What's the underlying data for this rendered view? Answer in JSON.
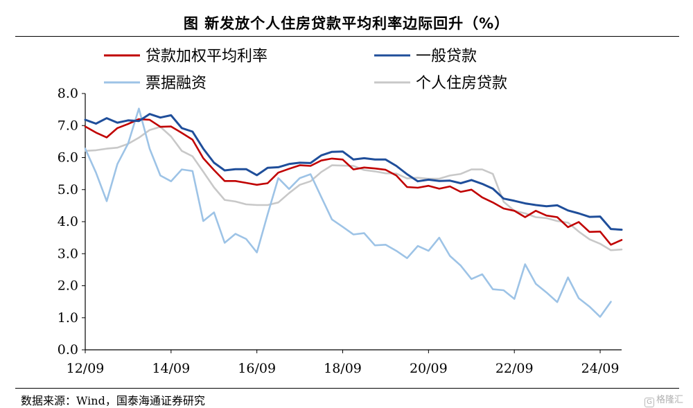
{
  "title": "图  新发放个人住房贷款平均利率边际回升（%）",
  "source": "数据来源：Wind，国泰海通证券研究",
  "watermark": "格隆汇",
  "chart_data": {
    "type": "line",
    "title": "图  新发放个人住房贷款平均利率边际回升（%）",
    "xlabel": "",
    "ylabel": "",
    "x_ticks": [
      "12/09",
      "14/09",
      "16/09",
      "18/09",
      "20/09",
      "22/09",
      "24/09"
    ],
    "x_range": [
      "2012-09",
      "2025-03"
    ],
    "ylim": [
      0,
      8
    ],
    "y_ticks": [
      "0.0",
      "1.0",
      "2.0",
      "3.0",
      "4.0",
      "5.0",
      "6.0",
      "7.0",
      "8.0"
    ],
    "grid": false,
    "legend_position": "top",
    "series": [
      {
        "name": "贷款加权平均利率",
        "color": "#c00000",
        "points": [
          [
            "2012-09",
            6.97
          ],
          [
            "2012-12",
            6.78
          ],
          [
            "2013-03",
            6.63
          ],
          [
            "2013-06",
            6.92
          ],
          [
            "2013-09",
            7.05
          ],
          [
            "2013-12",
            7.2
          ],
          [
            "2014-03",
            7.18
          ],
          [
            "2014-06",
            6.96
          ],
          [
            "2014-09",
            6.97
          ],
          [
            "2014-12",
            6.77
          ],
          [
            "2015-03",
            6.56
          ],
          [
            "2015-06",
            5.98
          ],
          [
            "2015-09",
            5.61
          ],
          [
            "2015-12",
            5.27
          ],
          [
            "2016-03",
            5.27
          ],
          [
            "2016-06",
            5.21
          ],
          [
            "2016-09",
            5.15
          ],
          [
            "2016-12",
            5.2
          ],
          [
            "2017-03",
            5.53
          ],
          [
            "2017-06",
            5.65
          ],
          [
            "2017-09",
            5.76
          ],
          [
            "2017-12",
            5.74
          ],
          [
            "2018-03",
            5.91
          ],
          [
            "2018-06",
            5.97
          ],
          [
            "2018-09",
            5.94
          ],
          [
            "2018-12",
            5.63
          ],
          [
            "2019-03",
            5.69
          ],
          [
            "2019-06",
            5.66
          ],
          [
            "2019-09",
            5.62
          ],
          [
            "2019-12",
            5.44
          ],
          [
            "2020-03",
            5.08
          ],
          [
            "2020-06",
            5.06
          ],
          [
            "2020-09",
            5.12
          ],
          [
            "2020-12",
            5.03
          ],
          [
            "2021-03",
            5.1
          ],
          [
            "2021-06",
            4.93
          ],
          [
            "2021-09",
            5.0
          ],
          [
            "2021-12",
            4.76
          ],
          [
            "2022-03",
            4.6
          ],
          [
            "2022-06",
            4.41
          ],
          [
            "2022-09",
            4.34
          ],
          [
            "2022-12",
            4.14
          ],
          [
            "2023-03",
            4.34
          ],
          [
            "2023-06",
            4.19
          ],
          [
            "2023-09",
            4.14
          ],
          [
            "2023-12",
            3.83
          ],
          [
            "2024-03",
            3.99
          ],
          [
            "2024-06",
            3.68
          ],
          [
            "2024-09",
            3.69
          ],
          [
            "2024-12",
            3.28
          ],
          [
            "2025-03",
            3.43
          ]
        ]
      },
      {
        "name": "一般贷款",
        "color": "#1f4e9a",
        "points": [
          [
            "2012-09",
            7.18
          ],
          [
            "2012-12",
            7.06
          ],
          [
            "2013-03",
            7.23
          ],
          [
            "2013-06",
            7.09
          ],
          [
            "2013-09",
            7.16
          ],
          [
            "2013-12",
            7.14
          ],
          [
            "2014-03",
            7.36
          ],
          [
            "2014-06",
            7.25
          ],
          [
            "2014-09",
            7.32
          ],
          [
            "2014-12",
            6.92
          ],
          [
            "2015-03",
            6.81
          ],
          [
            "2015-06",
            6.28
          ],
          [
            "2015-09",
            5.84
          ],
          [
            "2015-12",
            5.6
          ],
          [
            "2016-03",
            5.64
          ],
          [
            "2016-06",
            5.64
          ],
          [
            "2016-09",
            5.45
          ],
          [
            "2016-12",
            5.68
          ],
          [
            "2017-03",
            5.7
          ],
          [
            "2017-06",
            5.8
          ],
          [
            "2017-09",
            5.84
          ],
          [
            "2017-12",
            5.83
          ],
          [
            "2018-03",
            6.07
          ],
          [
            "2018-06",
            6.18
          ],
          [
            "2018-09",
            6.19
          ],
          [
            "2018-12",
            5.94
          ],
          [
            "2019-03",
            5.98
          ],
          [
            "2019-06",
            5.94
          ],
          [
            "2019-09",
            5.94
          ],
          [
            "2019-12",
            5.74
          ],
          [
            "2020-03",
            5.48
          ],
          [
            "2020-06",
            5.26
          ],
          [
            "2020-09",
            5.31
          ],
          [
            "2020-12",
            5.27
          ],
          [
            "2021-03",
            5.28
          ],
          [
            "2021-06",
            5.2
          ],
          [
            "2021-09",
            5.3
          ],
          [
            "2021-12",
            5.18
          ],
          [
            "2022-03",
            5.03
          ],
          [
            "2022-06",
            4.72
          ],
          [
            "2022-09",
            4.65
          ],
          [
            "2022-12",
            4.57
          ],
          [
            "2023-03",
            4.52
          ],
          [
            "2023-06",
            4.48
          ],
          [
            "2023-09",
            4.51
          ],
          [
            "2023-12",
            4.35
          ],
          [
            "2024-03",
            4.26
          ],
          [
            "2024-06",
            4.15
          ],
          [
            "2024-09",
            4.16
          ],
          [
            "2024-12",
            3.77
          ],
          [
            "2025-03",
            3.75
          ]
        ]
      },
      {
        "name": "票据融资",
        "color": "#9dc3e6",
        "points": [
          [
            "2012-09",
            6.28
          ],
          [
            "2012-12",
            5.53
          ],
          [
            "2013-03",
            4.64
          ],
          [
            "2013-06",
            5.8
          ],
          [
            "2013-09",
            6.44
          ],
          [
            "2013-12",
            7.53
          ],
          [
            "2014-03",
            6.28
          ],
          [
            "2014-06",
            5.44
          ],
          [
            "2014-09",
            5.26
          ],
          [
            "2014-12",
            5.63
          ],
          [
            "2015-03",
            5.58
          ],
          [
            "2015-06",
            4.02
          ],
          [
            "2015-09",
            4.29
          ],
          [
            "2015-12",
            3.34
          ],
          [
            "2016-03",
            3.62
          ],
          [
            "2016-06",
            3.46
          ],
          [
            "2016-09",
            3.04
          ],
          [
            "2016-12",
            4.23
          ],
          [
            "2017-03",
            5.36
          ],
          [
            "2017-06",
            5.02
          ],
          [
            "2017-09",
            5.36
          ],
          [
            "2017-12",
            5.48
          ],
          [
            "2018-03",
            4.77
          ],
          [
            "2018-06",
            4.07
          ],
          [
            "2018-09",
            3.84
          ],
          [
            "2018-12",
            3.6
          ],
          [
            "2019-03",
            3.64
          ],
          [
            "2019-06",
            3.26
          ],
          [
            "2019-09",
            3.28
          ],
          [
            "2019-12",
            3.09
          ],
          [
            "2020-03",
            2.86
          ],
          [
            "2020-06",
            3.24
          ],
          [
            "2020-09",
            3.09
          ],
          [
            "2020-12",
            3.5
          ],
          [
            "2021-03",
            2.93
          ],
          [
            "2021-06",
            2.63
          ],
          [
            "2021-09",
            2.21
          ],
          [
            "2021-12",
            2.36
          ],
          [
            "2022-03",
            1.89
          ],
          [
            "2022-06",
            1.86
          ],
          [
            "2022-09",
            1.59
          ],
          [
            "2022-12",
            2.67
          ],
          [
            "2023-03",
            2.06
          ],
          [
            "2023-06",
            1.79
          ],
          [
            "2023-09",
            1.49
          ],
          [
            "2023-12",
            2.26
          ],
          [
            "2024-03",
            1.61
          ],
          [
            "2024-06",
            1.35
          ],
          [
            "2024-09",
            1.03
          ],
          [
            "2024-12",
            1.5
          ]
        ]
      },
      {
        "name": "个人住房贷款",
        "color": "#c8c8c8",
        "points": [
          [
            "2012-09",
            6.21
          ],
          [
            "2012-12",
            6.23
          ],
          [
            "2013-03",
            6.28
          ],
          [
            "2013-06",
            6.31
          ],
          [
            "2013-09",
            6.43
          ],
          [
            "2013-12",
            6.62
          ],
          [
            "2014-03",
            6.86
          ],
          [
            "2014-06",
            6.96
          ],
          [
            "2014-09",
            6.66
          ],
          [
            "2014-12",
            6.21
          ],
          [
            "2015-03",
            6.04
          ],
          [
            "2015-06",
            5.56
          ],
          [
            "2015-09",
            5.07
          ],
          [
            "2015-12",
            4.68
          ],
          [
            "2016-03",
            4.63
          ],
          [
            "2016-06",
            4.54
          ],
          [
            "2016-09",
            4.52
          ],
          [
            "2016-12",
            4.52
          ],
          [
            "2017-03",
            4.6
          ],
          [
            "2017-06",
            4.89
          ],
          [
            "2017-09",
            5.15
          ],
          [
            "2017-12",
            5.26
          ],
          [
            "2018-03",
            5.55
          ],
          [
            "2018-06",
            5.76
          ],
          [
            "2018-09",
            5.75
          ],
          [
            "2018-12",
            5.74
          ],
          [
            "2019-03",
            5.61
          ],
          [
            "2019-06",
            5.57
          ],
          [
            "2019-09",
            5.51
          ],
          [
            "2019-12",
            5.5
          ],
          [
            "2020-03",
            5.35
          ],
          [
            "2020-06",
            5.37
          ],
          [
            "2020-09",
            5.34
          ],
          [
            "2020-12",
            5.34
          ],
          [
            "2021-03",
            5.44
          ],
          [
            "2021-06",
            5.49
          ],
          [
            "2021-09",
            5.63
          ],
          [
            "2021-12",
            5.63
          ],
          [
            "2022-03",
            5.49
          ],
          [
            "2022-06",
            4.62
          ],
          [
            "2022-09",
            4.34
          ],
          [
            "2022-12",
            4.26
          ],
          [
            "2023-03",
            4.14
          ],
          [
            "2023-06",
            4.11
          ],
          [
            "2023-09",
            4.02
          ],
          [
            "2023-12",
            3.97
          ],
          [
            "2024-03",
            3.69
          ],
          [
            "2024-06",
            3.45
          ],
          [
            "2024-09",
            3.31
          ],
          [
            "2024-12",
            3.11
          ],
          [
            "2025-03",
            3.13
          ]
        ]
      }
    ]
  }
}
